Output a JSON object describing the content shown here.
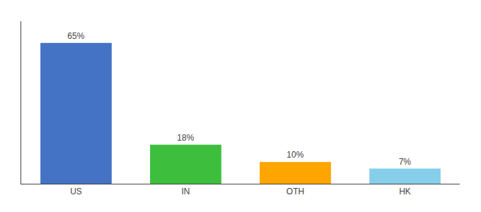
{
  "chart_data": {
    "type": "bar",
    "categories": [
      "US",
      "IN",
      "OTH",
      "HK"
    ],
    "values": [
      65,
      18,
      10,
      7
    ],
    "value_labels": [
      "65%",
      "18%",
      "10%",
      "7%"
    ],
    "colors": [
      "#4472C4",
      "#3DBF3D",
      "#FFA500",
      "#87CEEB"
    ],
    "ylim": [
      0,
      75
    ],
    "grid": false,
    "data_labels": true,
    "tick_labels": "x"
  }
}
